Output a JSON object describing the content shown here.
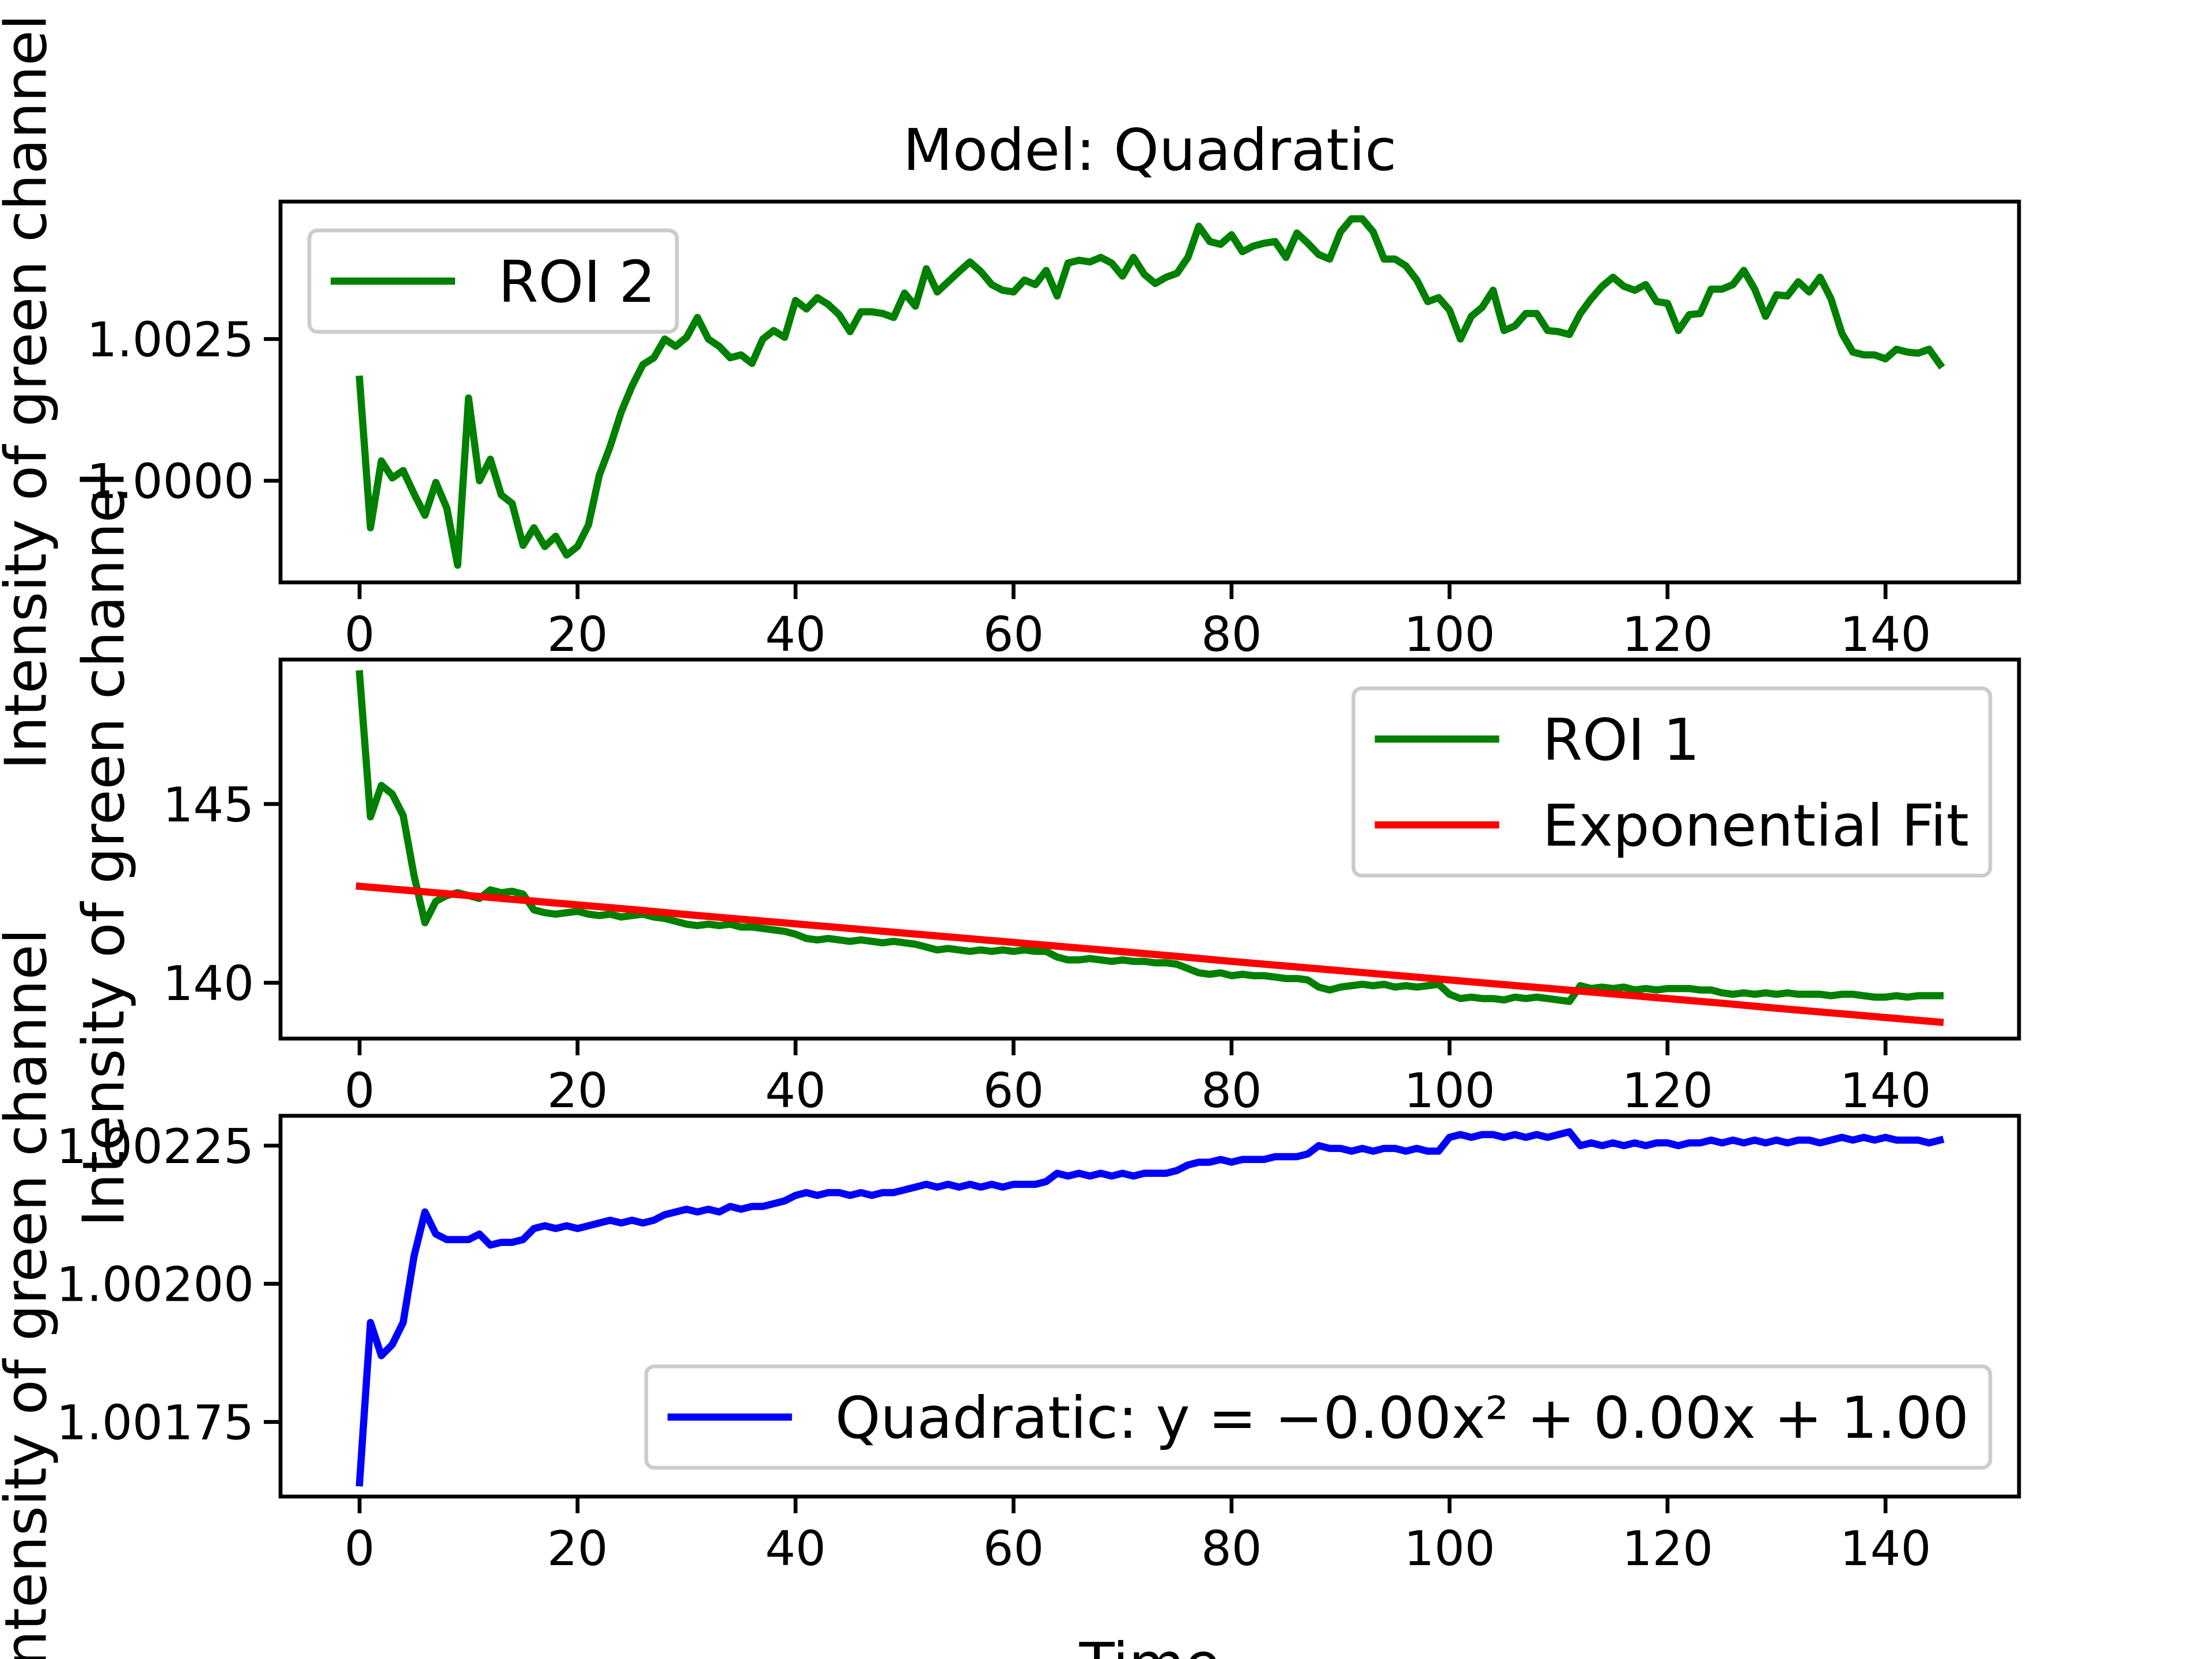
{
  "chart_data": [
    {
      "type": "line",
      "title": "Model: Quadratic",
      "ylabel": "Intensity of green channel",
      "legend": "upper left",
      "x": [
        0,
        1,
        2,
        3,
        4,
        5,
        6,
        7,
        8,
        9,
        10,
        11,
        12,
        13,
        14,
        15,
        16,
        17,
        18,
        19,
        20,
        21,
        22,
        23,
        24,
        25,
        26,
        27,
        28,
        29,
        30,
        31,
        32,
        33,
        34,
        35,
        36,
        37,
        38,
        39,
        40,
        41,
        42,
        43,
        44,
        45,
        46,
        47,
        48,
        49,
        50,
        51,
        52,
        53,
        54,
        55,
        56,
        57,
        58,
        59,
        60,
        61,
        62,
        63,
        64,
        65,
        66,
        67,
        68,
        69,
        70,
        71,
        72,
        73,
        74,
        75,
        76,
        77,
        78,
        79,
        80,
        81,
        82,
        83,
        84,
        85,
        86,
        87,
        88,
        89,
        90,
        91,
        92,
        93,
        94,
        95,
        96,
        97,
        98,
        99,
        100,
        101,
        102,
        103,
        104,
        105,
        106,
        107,
        108,
        109,
        110,
        111,
        112,
        113,
        114,
        115,
        116,
        117,
        118,
        119,
        120,
        121,
        122,
        123,
        124,
        125,
        126,
        127,
        128,
        129,
        130,
        131,
        132,
        133,
        134,
        135,
        136,
        137,
        138,
        139,
        140,
        141,
        142,
        143,
        144,
        145
      ],
      "series": [
        {
          "name": "ROI 2",
          "color": "#008000",
          "values": [
            1.00179,
            0.99917,
            1.00035,
            1.00005,
            1.00018,
            0.99977,
            0.99939,
            0.99997,
            0.99952,
            0.99851,
            1.00146,
            1.0,
            1.00038,
            0.99975,
            0.9996,
            0.99886,
            0.99917,
            0.99884,
            0.99902,
            0.99869,
            0.99884,
            0.99922,
            1.0001,
            1.00061,
            1.00121,
            1.00167,
            1.00205,
            1.00217,
            1.0025,
            1.00237,
            1.00253,
            1.00288,
            1.0025,
            1.00237,
            1.00217,
            1.00222,
            1.00207,
            1.0025,
            1.00265,
            1.00253,
            1.00318,
            1.00303,
            1.00323,
            1.00311,
            1.00293,
            1.00263,
            1.00298,
            1.00298,
            1.00295,
            1.00288,
            1.00331,
            1.00308,
            1.00374,
            1.00333,
            1.00351,
            1.00369,
            1.00386,
            1.00369,
            1.00346,
            1.00336,
            1.00333,
            1.00354,
            1.00346,
            1.00371,
            1.00326,
            1.00384,
            1.00389,
            1.00386,
            1.00394,
            1.00384,
            1.00361,
            1.00394,
            1.00364,
            1.00348,
            1.00359,
            1.00366,
            1.00394,
            1.00449,
            1.00422,
            1.00417,
            1.00434,
            1.00404,
            1.00414,
            1.00419,
            1.00422,
            1.00394,
            1.00437,
            1.00419,
            1.00399,
            1.00391,
            1.00439,
            1.00462,
            1.00462,
            1.00439,
            1.00391,
            1.00391,
            1.00379,
            1.00354,
            1.00316,
            1.00323,
            1.00301,
            1.0025,
            1.0029,
            1.00306,
            1.00336,
            1.00265,
            1.00273,
            1.00295,
            1.00295,
            1.00265,
            1.00263,
            1.00258,
            1.00295,
            1.00321,
            1.00343,
            1.00359,
            1.00343,
            1.00336,
            1.00346,
            1.00316,
            1.00313,
            1.00265,
            1.00293,
            1.00295,
            1.00338,
            1.00338,
            1.00346,
            1.00371,
            1.00338,
            1.0029,
            1.00328,
            1.00326,
            1.00351,
            1.00333,
            1.00359,
            1.00321,
            1.0026,
            1.00227,
            1.00222,
            1.00222,
            1.00215,
            1.00232,
            1.00227,
            1.00225,
            1.00232,
            1.00205
          ]
        }
      ],
      "xlim": [
        -7.25,
        152.25
      ],
      "ylim": [
        0.998207,
        1.004924
      ],
      "xticks": [
        0,
        20,
        40,
        60,
        80,
        100,
        120,
        140
      ],
      "yticks": [
        {
          "value": 1.0,
          "label": "1.0000"
        },
        {
          "value": 1.0025,
          "label": "1.0025"
        }
      ]
    },
    {
      "type": "line",
      "ylabel": "Intensity of green channel",
      "legend": "upper right",
      "x": [
        0,
        1,
        2,
        3,
        4,
        5,
        6,
        7,
        8,
        9,
        10,
        11,
        12,
        13,
        14,
        15,
        16,
        17,
        18,
        19,
        20,
        21,
        22,
        23,
        24,
        25,
        26,
        27,
        28,
        29,
        30,
        31,
        32,
        33,
        34,
        35,
        36,
        37,
        38,
        39,
        40,
        41,
        42,
        43,
        44,
        45,
        46,
        47,
        48,
        49,
        50,
        51,
        52,
        53,
        54,
        55,
        56,
        57,
        58,
        59,
        60,
        61,
        62,
        63,
        64,
        65,
        66,
        67,
        68,
        69,
        70,
        71,
        72,
        73,
        74,
        75,
        76,
        77,
        78,
        79,
        80,
        81,
        82,
        83,
        84,
        85,
        86,
        87,
        88,
        89,
        90,
        91,
        92,
        93,
        94,
        95,
        96,
        97,
        98,
        99,
        100,
        101,
        102,
        103,
        104,
        105,
        106,
        107,
        108,
        109,
        110,
        111,
        112,
        113,
        114,
        115,
        116,
        117,
        118,
        119,
        120,
        121,
        122,
        123,
        124,
        125,
        126,
        127,
        128,
        129,
        130,
        131,
        132,
        133,
        134,
        135,
        136,
        137,
        138,
        139,
        140,
        141,
        142,
        143,
        144,
        145
      ],
      "series": [
        {
          "name": "ROI 1",
          "color": "#008000",
          "values": [
            148.64,
            144.64,
            145.52,
            145.28,
            144.68,
            143.0,
            141.68,
            142.28,
            142.44,
            142.52,
            142.44,
            142.36,
            142.6,
            142.52,
            142.56,
            142.48,
            142.04,
            141.96,
            141.92,
            141.96,
            142.0,
            141.92,
            141.88,
            141.92,
            141.84,
            141.88,
            141.92,
            141.84,
            141.8,
            141.72,
            141.64,
            141.6,
            141.64,
            141.6,
            141.64,
            141.56,
            141.56,
            141.52,
            141.48,
            141.44,
            141.36,
            141.24,
            141.2,
            141.24,
            141.2,
            141.16,
            141.2,
            141.16,
            141.12,
            141.16,
            141.12,
            141.08,
            141.0,
            140.92,
            140.96,
            140.92,
            140.88,
            140.92,
            140.88,
            140.92,
            140.88,
            140.92,
            140.88,
            140.88,
            140.72,
            140.64,
            140.64,
            140.68,
            140.64,
            140.6,
            140.64,
            140.6,
            140.6,
            140.56,
            140.56,
            140.52,
            140.4,
            140.28,
            140.24,
            140.28,
            140.2,
            140.24,
            140.2,
            140.2,
            140.16,
            140.12,
            140.12,
            140.08,
            139.88,
            139.8,
            139.88,
            139.92,
            139.96,
            139.92,
            139.96,
            139.88,
            139.92,
            139.88,
            139.92,
            139.96,
            139.68,
            139.56,
            139.6,
            139.56,
            139.56,
            139.52,
            139.6,
            139.56,
            139.6,
            139.56,
            139.52,
            139.48,
            139.92,
            139.84,
            139.88,
            139.84,
            139.88,
            139.8,
            139.84,
            139.8,
            139.84,
            139.84,
            139.84,
            139.8,
            139.8,
            139.72,
            139.68,
            139.72,
            139.68,
            139.72,
            139.68,
            139.72,
            139.68,
            139.68,
            139.68,
            139.64,
            139.68,
            139.68,
            139.64,
            139.6,
            139.6,
            139.64,
            139.6,
            139.64,
            139.64,
            139.64
          ]
        },
        {
          "name": "Exponential Fit",
          "color": "#ff0000",
          "x": [
            0,
            5,
            10,
            15,
            20,
            25,
            30,
            35,
            40,
            45,
            50,
            55,
            60,
            65,
            70,
            75,
            80,
            85,
            90,
            95,
            100,
            105,
            110,
            115,
            120,
            125,
            130,
            135,
            140,
            145
          ],
          "values": [
            142.7,
            142.57,
            142.44,
            142.31,
            142.18,
            142.05,
            141.91,
            141.78,
            141.65,
            141.52,
            141.39,
            141.26,
            141.13,
            141.0,
            140.87,
            140.74,
            140.6,
            140.47,
            140.34,
            140.21,
            140.08,
            139.95,
            139.82,
            139.69,
            139.56,
            139.43,
            139.29,
            139.16,
            139.03,
            138.9
          ]
        }
      ],
      "xlim": [
        -7.25,
        152.25
      ],
      "ylim": [
        138.44,
        149.04
      ],
      "xticks": [
        0,
        20,
        40,
        60,
        80,
        100,
        120,
        140
      ],
      "yticks": [
        140,
        145
      ]
    },
    {
      "type": "line",
      "ylabel": "Intensity of green channel",
      "xlabel": "Time",
      "legend": "lower right",
      "x": [
        0,
        1,
        2,
        3,
        4,
        5,
        6,
        7,
        8,
        9,
        10,
        11,
        12,
        13,
        14,
        15,
        16,
        17,
        18,
        19,
        20,
        21,
        22,
        23,
        24,
        25,
        26,
        27,
        28,
        29,
        30,
        31,
        32,
        33,
        34,
        35,
        36,
        37,
        38,
        39,
        40,
        41,
        42,
        43,
        44,
        45,
        46,
        47,
        48,
        49,
        50,
        51,
        52,
        53,
        54,
        55,
        56,
        57,
        58,
        59,
        60,
        61,
        62,
        63,
        64,
        65,
        66,
        67,
        68,
        69,
        70,
        71,
        72,
        73,
        74,
        75,
        76,
        77,
        78,
        79,
        80,
        81,
        82,
        83,
        84,
        85,
        86,
        87,
        88,
        89,
        90,
        91,
        92,
        93,
        94,
        95,
        96,
        97,
        98,
        99,
        100,
        101,
        102,
        103,
        104,
        105,
        106,
        107,
        108,
        109,
        110,
        111,
        112,
        113,
        114,
        115,
        116,
        117,
        118,
        119,
        120,
        121,
        122,
        123,
        124,
        125,
        126,
        127,
        128,
        129,
        130,
        131,
        132,
        133,
        134,
        135,
        136,
        137,
        138,
        139,
        140,
        141,
        142,
        143,
        144,
        145
      ],
      "series": [
        {
          "name": "Quadratic: y = −0.00x² + 0.00x + 1.00",
          "color": "#0000ff",
          "values": [
            1.00164,
            1.00193,
            1.00187,
            1.00189,
            1.00193,
            1.00205,
            1.00213,
            1.00209,
            1.00208,
            1.00208,
            1.00208,
            1.00209,
            1.00207,
            1.002075,
            1.002075,
            1.00208,
            1.0021,
            1.002105,
            1.0021,
            1.002105,
            1.0021,
            1.002105,
            1.00211,
            1.002115,
            1.00211,
            1.002115,
            1.00211,
            1.002115,
            1.002125,
            1.00213,
            1.002135,
            1.00213,
            1.002135,
            1.00213,
            1.00214,
            1.002135,
            1.00214,
            1.00214,
            1.002145,
            1.00215,
            1.00216,
            1.002165,
            1.00216,
            1.002165,
            1.002165,
            1.00216,
            1.002165,
            1.00216,
            1.002165,
            1.002165,
            1.00217,
            1.002175,
            1.00218,
            1.002175,
            1.00218,
            1.002175,
            1.00218,
            1.002175,
            1.00218,
            1.002175,
            1.00218,
            1.00218,
            1.00218,
            1.002185,
            1.0022,
            1.002195,
            1.0022,
            1.002195,
            1.0022,
            1.002195,
            1.0022,
            1.002195,
            1.0022,
            1.0022,
            1.0022,
            1.002205,
            1.002215,
            1.00222,
            1.00222,
            1.002225,
            1.00222,
            1.002225,
            1.002225,
            1.002225,
            1.00223,
            1.00223,
            1.00223,
            1.002235,
            1.00225,
            1.002245,
            1.002245,
            1.00224,
            1.002245,
            1.00224,
            1.002245,
            1.002245,
            1.00224,
            1.002245,
            1.00224,
            1.00224,
            1.002265,
            1.00227,
            1.002265,
            1.00227,
            1.00227,
            1.002265,
            1.00227,
            1.002265,
            1.00227,
            1.002265,
            1.00227,
            1.002275,
            1.00225,
            1.002255,
            1.00225,
            1.002255,
            1.00225,
            1.002255,
            1.00225,
            1.002255,
            1.002255,
            1.00225,
            1.002255,
            1.002255,
            1.00226,
            1.002255,
            1.00226,
            1.002255,
            1.00226,
            1.002255,
            1.00226,
            1.002255,
            1.00226,
            1.00226,
            1.002255,
            1.00226,
            1.002265,
            1.00226,
            1.002265,
            1.00226,
            1.002265,
            1.00226,
            1.00226,
            1.00226,
            1.002255,
            1.00226
          ]
        }
      ],
      "xlim": [
        -7.25,
        152.25
      ],
      "ylim": [
        1.001615,
        1.002304
      ],
      "xticks": [
        0,
        20,
        40,
        60,
        80,
        100,
        120,
        140
      ],
      "yticks": [
        1.00175,
        {
          "value": 1.002,
          "label": "1.00200"
        },
        1.00225
      ]
    }
  ]
}
